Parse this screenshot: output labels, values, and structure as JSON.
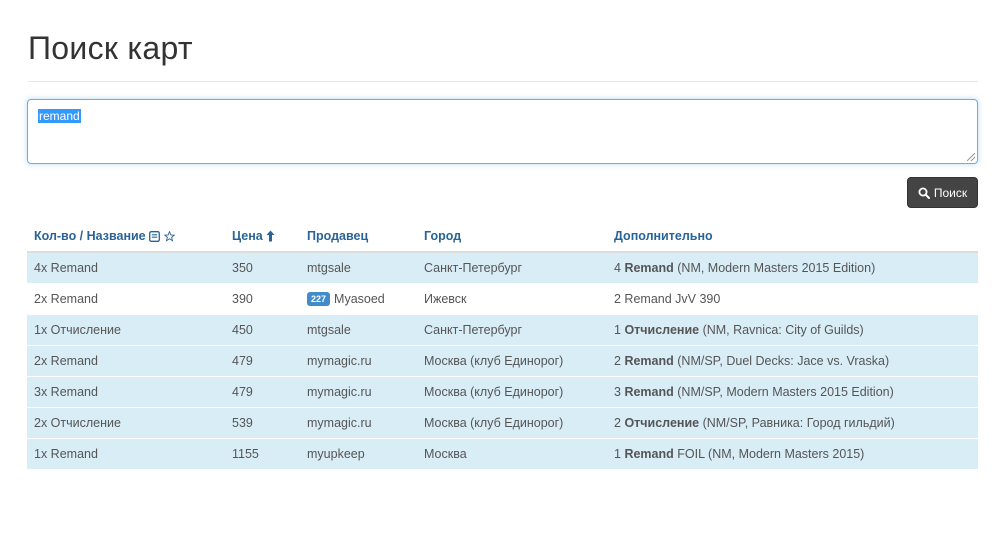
{
  "page": {
    "title": "Поиск карт"
  },
  "search": {
    "value": "remand",
    "button_label": "Поиск"
  },
  "table": {
    "headers": {
      "qty_name": "Кол-во / Название",
      "price": "Цена",
      "seller": "Продавец",
      "city": "Город",
      "extra": "Дополнительно"
    },
    "rows": [
      {
        "qty_name": "4x Remand",
        "price": "350",
        "seller": "mtgsale",
        "badge": "",
        "city": "Санкт-Петербург",
        "extra_qty": "4",
        "extra_name": "Remand",
        "extra_rest": "(NM, Modern Masters 2015 Edition)",
        "highlight": true
      },
      {
        "qty_name": "2x Remand",
        "price": "390",
        "seller": "Myasoed",
        "badge": "227",
        "city": "Ижевск",
        "extra_qty": "",
        "extra_name": "",
        "extra_rest": "2 Remand JvV 390",
        "highlight": false
      },
      {
        "qty_name": "1x Отчисление",
        "price": "450",
        "seller": "mtgsale",
        "badge": "",
        "city": "Санкт-Петербург",
        "extra_qty": "1",
        "extra_name": "Отчисление",
        "extra_rest": "(NM, Ravnica: City of Guilds)",
        "highlight": true
      },
      {
        "qty_name": "2x Remand",
        "price": "479",
        "seller": "mymagic.ru",
        "badge": "",
        "city": "Москва (клуб Единорог)",
        "extra_qty": "2",
        "extra_name": "Remand",
        "extra_rest": "(NM/SP, Duel Decks: Jace vs. Vraska)",
        "highlight": true
      },
      {
        "qty_name": "3x Remand",
        "price": "479",
        "seller": "mymagic.ru",
        "badge": "",
        "city": "Москва (клуб Единорог)",
        "extra_qty": "3",
        "extra_name": "Remand",
        "extra_rest": "(NM/SP, Modern Masters 2015 Edition)",
        "highlight": true
      },
      {
        "qty_name": "2x Отчисление",
        "price": "539",
        "seller": "mymagic.ru",
        "badge": "",
        "city": "Москва (клуб Единорог)",
        "extra_qty": "2",
        "extra_name": "Отчисление",
        "extra_rest": "(NM/SP, Равника: Город гильдий)",
        "highlight": true
      },
      {
        "qty_name": "1x Remand",
        "price": "1155",
        "seller": "myupkeep",
        "badge": "",
        "city": "Москва",
        "extra_qty": "1",
        "extra_name": "Remand",
        "extra_rest": "FOIL (NM, Modern Masters 2015)",
        "highlight": true
      }
    ]
  },
  "icons": {
    "search": "magnifier-icon",
    "sort": "arrow-up-icon",
    "card_list": "card-list-icon",
    "star": "star-icon"
  },
  "colors": {
    "row_highlight": "#d9edf7",
    "header_link": "#2a6496",
    "button_bg": "#444444",
    "badge": "#428bca",
    "focus": "#66afe9"
  }
}
